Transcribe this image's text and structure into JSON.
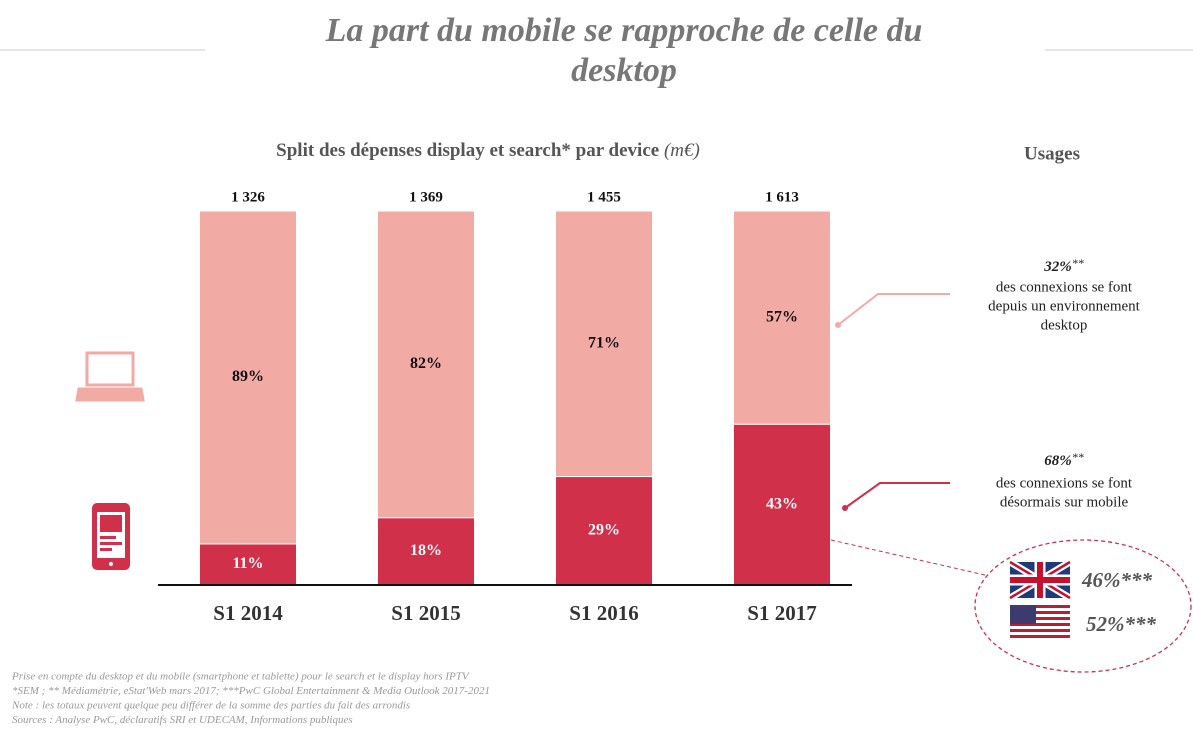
{
  "chart_data": {
    "type": "stacked_bar",
    "title": "La part du mobile se rapproche de celle du desktop",
    "subtitle": "Split des dépenses display et search* par device",
    "unit": "(m€)",
    "categories": [
      "S1 2014",
      "S1 2015",
      "S1 2016",
      "S1 2017"
    ],
    "ylim": [
      0,
      100
    ],
    "series": [
      {
        "name": "mobile",
        "color": "#d1304b",
        "values": [
          11,
          18,
          29,
          43
        ],
        "value_labels": [
          "11%",
          "18%",
          "29%",
          "43%"
        ]
      },
      {
        "name": "desktop",
        "color": "#f2aaa4",
        "values": [
          89,
          82,
          71,
          57
        ],
        "value_labels": [
          "89%",
          "82%",
          "71%",
          "57%"
        ]
      }
    ],
    "totals": {
      "values": [
        1326,
        1369,
        1455,
        1613
      ],
      "value_labels": [
        "1 326",
        "1 369",
        "1 455",
        "1 613"
      ]
    },
    "usages": {
      "title": "Usages",
      "desktop": {
        "value": "32%",
        "mark": "**",
        "lines": [
          "des connexions se font",
          "depuis un environnement",
          "desktop"
        ]
      },
      "mobile": {
        "value": "68%",
        "mark": "**",
        "lines": [
          "des connexions se font",
          "désormais sur mobile"
        ]
      },
      "uk": {
        "value": "46%",
        "mark": "***"
      },
      "us": {
        "value": "52%",
        "mark": "***"
      }
    },
    "footnotes": [
      "Prise en compte du desktop et du mobile (smartphone et tablette) pour le search et le display hors IPTV",
      "*SEM ; ** Médiamétrie, eStat'Web mars 2017; ***PwC Global Entertainment & Media Outlook 2017-2021",
      "Note : les totaux peuvent quelque peu différer de la somme des parties du fait des arrondis",
      "Sources : Analyse PwC, déclaratifs SRI et UDECAM, Informations publiques"
    ]
  }
}
